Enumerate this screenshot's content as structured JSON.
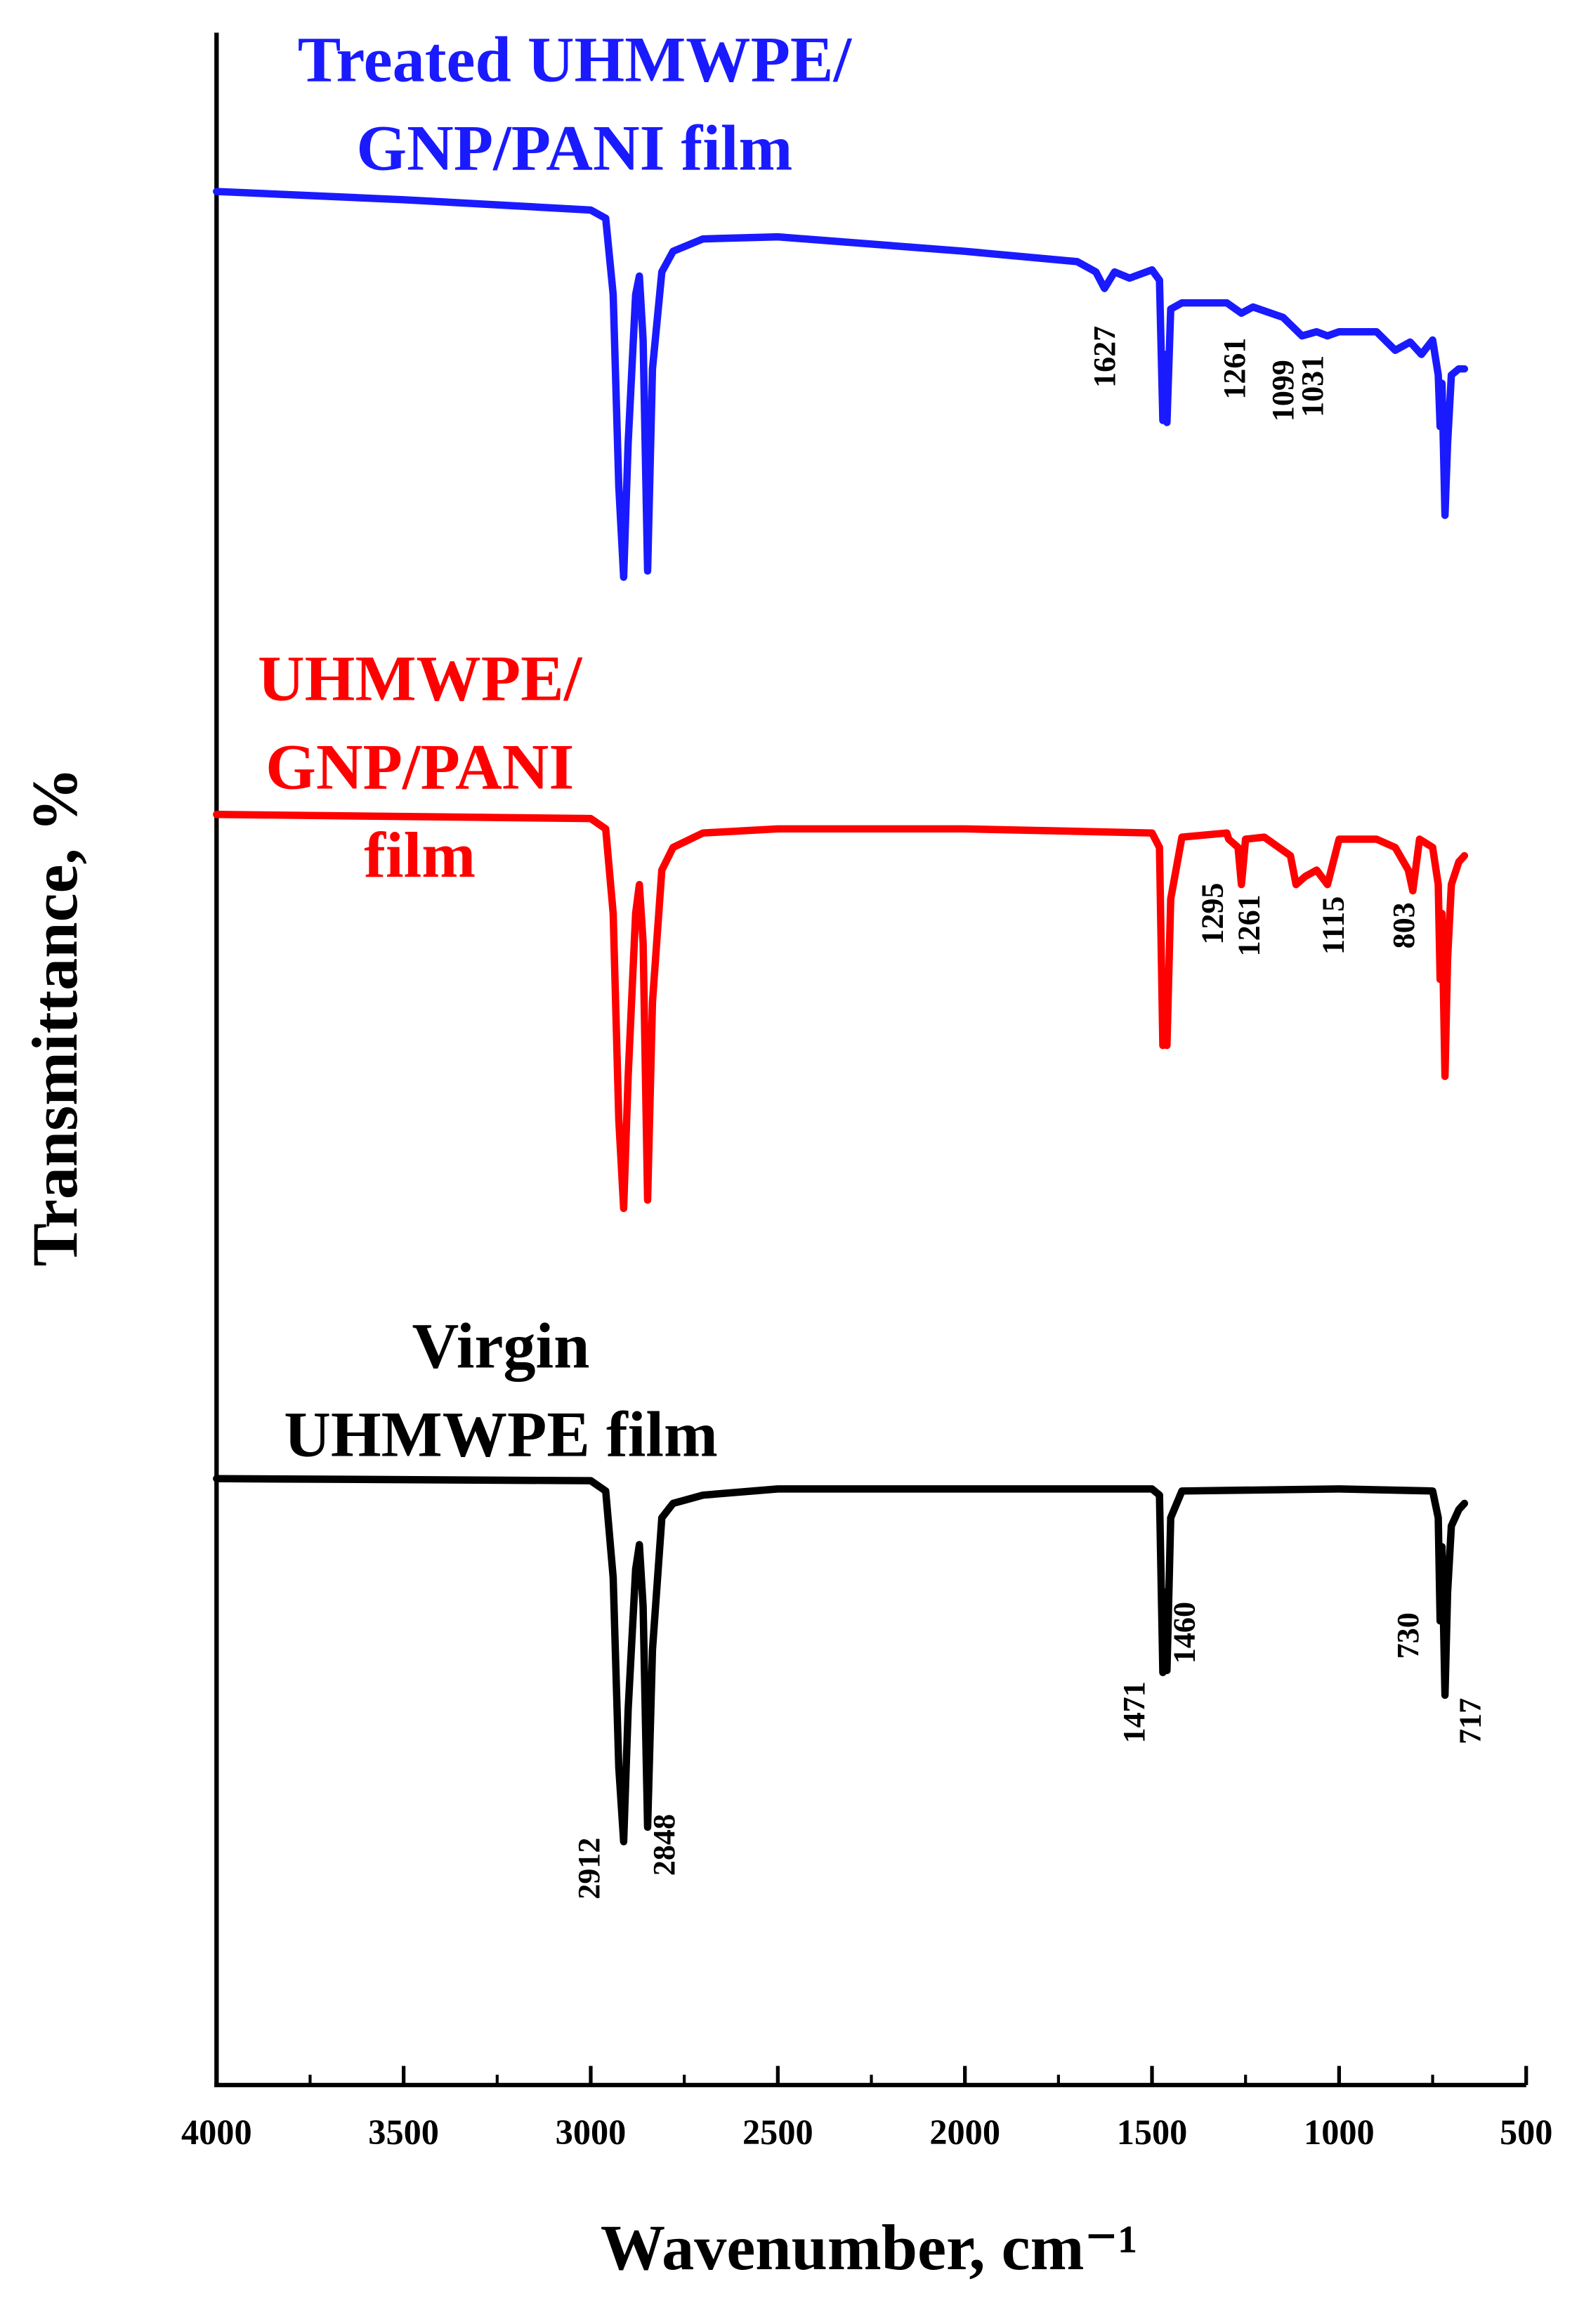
{
  "chart_data": {
    "type": "line",
    "x_label": "Wavenumber, cm⁻¹",
    "y_label": "Transmittance, %",
    "xlim": [
      4000,
      500
    ],
    "xticks": [
      4000,
      3500,
      3000,
      2500,
      2000,
      1500,
      1000,
      500
    ],
    "ylim": [
      0,
      100
    ],
    "grid": false,
    "series": [
      {
        "name": "Treated UHMWPE/\nGNP/PANI film",
        "color": "#1a1aff",
        "x": [
          4000,
          3500,
          3000,
          2960,
          2940,
          2925,
          2912,
          2900,
          2880,
          2870,
          2860,
          2848,
          2835,
          2810,
          2780,
          2700,
          2500,
          2000,
          1700,
          1650,
          1627,
          1600,
          1560,
          1500,
          1480,
          1471,
          1465,
          1460,
          1450,
          1420,
          1300,
          1261,
          1230,
          1150,
          1099,
          1060,
          1031,
          1000,
          900,
          850,
          810,
          780,
          750,
          735,
          730,
          725,
          717,
          710,
          700,
          680,
          665
        ],
        "values": [
          91.8,
          91.4,
          90.9,
          90.5,
          86.8,
          77.5,
          73.1,
          79.6,
          86.8,
          87.7,
          84.6,
          73.4,
          83.2,
          87.9,
          88.9,
          89.5,
          89.6,
          88.9,
          88.4,
          87.9,
          87.1,
          87.9,
          87.6,
          88.0,
          87.5,
          80.7,
          83.9,
          80.6,
          86.1,
          86.4,
          86.4,
          85.9,
          86.2,
          85.7,
          84.8,
          85.0,
          84.8,
          85.0,
          85.0,
          84.1,
          84.5,
          83.9,
          84.6,
          82.9,
          80.4,
          82.5,
          76.1,
          79.6,
          82.9,
          83.2,
          83.2
        ],
        "peak_labels": [
          1627,
          1261,
          1099,
          1031
        ]
      },
      {
        "name": "UHMWPE/\nGNP/PANI\nfilm",
        "color": "#ff0000",
        "x": [
          4000,
          3000,
          2960,
          2940,
          2925,
          2912,
          2900,
          2880,
          2870,
          2860,
          2848,
          2835,
          2810,
          2780,
          2700,
          2500,
          2000,
          1500,
          1480,
          1471,
          1465,
          1460,
          1450,
          1420,
          1300,
          1295,
          1270,
          1261,
          1250,
          1200,
          1130,
          1115,
          1090,
          1060,
          1031,
          1000,
          900,
          850,
          815,
          803,
          785,
          750,
          735,
          730,
          725,
          717,
          710,
          700,
          680,
          665
        ],
        "values": [
          61.6,
          61.4,
          60.9,
          56.8,
          46.8,
          42.5,
          48.9,
          56.8,
          58.2,
          55.4,
          42.9,
          52.5,
          58.9,
          60.0,
          60.7,
          60.9,
          60.9,
          60.7,
          60.0,
          50.4,
          53.2,
          50.4,
          57.5,
          60.5,
          60.7,
          60.4,
          60.0,
          58.2,
          60.4,
          60.5,
          59.6,
          58.2,
          58.6,
          58.9,
          58.2,
          60.4,
          60.4,
          60.0,
          58.9,
          57.9,
          60.4,
          60.0,
          58.2,
          53.6,
          56.8,
          48.9,
          54.6,
          58.2,
          59.3,
          59.6
        ],
        "peak_labels": [
          1295,
          1261,
          1115,
          803
        ]
      },
      {
        "name": "Virgin\nUHMWPE film",
        "color": "#000000",
        "x": [
          4000,
          3000,
          2960,
          2940,
          2925,
          2912,
          2900,
          2880,
          2870,
          2860,
          2848,
          2835,
          2810,
          2780,
          2700,
          2500,
          2000,
          1500,
          1480,
          1471,
          1465,
          1460,
          1450,
          1420,
          1000,
          750,
          735,
          730,
          725,
          717,
          710,
          700,
          680,
          665
        ],
        "values": [
          29.4,
          29.3,
          28.8,
          24.6,
          15.4,
          11.8,
          18.2,
          25.0,
          26.2,
          23.2,
          12.5,
          21.1,
          27.5,
          28.2,
          28.6,
          28.9,
          28.9,
          28.9,
          28.6,
          20.0,
          23.9,
          20.1,
          27.5,
          28.8,
          28.9,
          28.8,
          27.5,
          22.5,
          26.1,
          18.9,
          23.9,
          27.1,
          27.9,
          28.2
        ],
        "peak_labels": [
          2912,
          2848,
          1471,
          1460,
          730,
          717
        ]
      }
    ]
  }
}
